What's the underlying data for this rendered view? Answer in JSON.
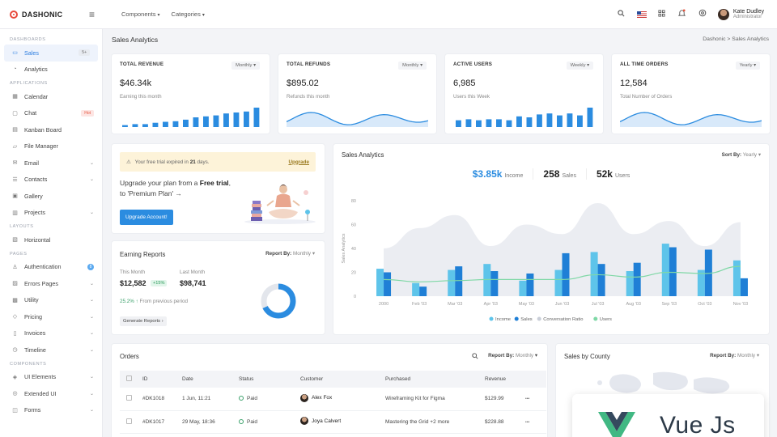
{
  "app": {
    "logo": "DASHONIC"
  },
  "topbar": {
    "nav": [
      "Components",
      "Categories"
    ],
    "user_name": "Kate Dudley",
    "user_role": "Administrator"
  },
  "sidebar": {
    "sections": [
      {
        "title": "DASHBOARDS",
        "items": [
          {
            "label": "Sales",
            "icon": "monitor-icon",
            "badge": "5+",
            "active": true
          },
          {
            "label": "Analytics",
            "icon": "analytics-icon"
          }
        ]
      },
      {
        "title": "APPLICATIONS",
        "items": [
          {
            "label": "Calendar",
            "icon": "calendar-icon"
          },
          {
            "label": "Chat",
            "icon": "chat-icon",
            "badge": "Hot"
          },
          {
            "label": "Kanban Board",
            "icon": "kanban-icon"
          },
          {
            "label": "File Manager",
            "icon": "folder-icon"
          },
          {
            "label": "Email",
            "icon": "mail-icon",
            "chevron": true
          },
          {
            "label": "Contacts",
            "icon": "contacts-icon",
            "chevron": true
          },
          {
            "label": "Gallery",
            "icon": "gallery-icon"
          },
          {
            "label": "Projects",
            "icon": "projects-icon",
            "chevron": true
          }
        ]
      },
      {
        "title": "LAYOUTS",
        "items": [
          {
            "label": "Horizontal",
            "icon": "layout-icon"
          }
        ]
      },
      {
        "title": "PAGES",
        "items": [
          {
            "label": "Authentication",
            "icon": "user-icon",
            "badge": "8"
          },
          {
            "label": "Errors Pages",
            "icon": "error-icon",
            "chevron": true
          },
          {
            "label": "Utility",
            "icon": "utility-icon",
            "chevron": true
          },
          {
            "label": "Pricing",
            "icon": "tag-icon",
            "chevron": true
          },
          {
            "label": "Invoices",
            "icon": "invoice-icon",
            "chevron": true
          },
          {
            "label": "Timeline",
            "icon": "timeline-icon",
            "chevron": true
          }
        ]
      },
      {
        "title": "COMPONENTS",
        "items": [
          {
            "label": "UI Elements",
            "icon": "elements-icon",
            "chevron": true
          },
          {
            "label": "Extended UI",
            "icon": "extended-icon",
            "chevron": true
          },
          {
            "label": "Forms",
            "icon": "forms-icon",
            "chevron": true
          }
        ]
      }
    ]
  },
  "page": {
    "title": "Sales Analytics",
    "breadcrumb": [
      "Dashonic",
      "Sales Analytics"
    ]
  },
  "kpis": [
    {
      "title": "TOTAL REVENUE",
      "filter": "Monthly",
      "value": "$46.34k",
      "sub": "Earning this month",
      "chart": "bars",
      "bars": [
        0.1,
        0.15,
        0.15,
        0.22,
        0.27,
        0.3,
        0.38,
        0.5,
        0.55,
        0.6,
        0.7,
        0.75,
        0.8,
        1.0
      ]
    },
    {
      "title": "TOTAL REFUNDS",
      "filter": "Monthly",
      "value": "$895.02",
      "sub": "Refunds this month",
      "chart": "wave"
    },
    {
      "title": "ACTIVE USERS",
      "filter": "Weekly",
      "value": "6,985",
      "sub": "Users this Week",
      "chart": "bars",
      "bars": [
        0.35,
        0.4,
        0.35,
        0.4,
        0.4,
        0.35,
        0.55,
        0.5,
        0.65,
        0.7,
        0.6,
        0.7,
        0.6,
        1.0
      ]
    },
    {
      "title": "ALL TIME ORDERS",
      "filter": "Yearly",
      "value": "12,584",
      "sub": "Total Number of Orders",
      "chart": "wave"
    }
  ],
  "upgrade": {
    "alert_prefix": "Your free trial expired in",
    "alert_days": "21",
    "alert_suffix": "days.",
    "alert_link": "Upgrade",
    "text_a": "Upgrade your plan from a ",
    "text_b": "Free trial",
    "text_c": ", to 'Premium Plan' →",
    "button": "Upgrade Account!"
  },
  "earning": {
    "title": "Earning Reports",
    "report_by_label": "Report By:",
    "report_by_value": "Monthly",
    "this_month_label": "This Month",
    "this_month_value": "$12,582",
    "this_month_change": "+15%",
    "last_month_label": "Last Month",
    "last_month_value": "$98,741",
    "growth": "25.2%",
    "growth_text": "From previous period",
    "button": "Generate Reports",
    "donut_fraction": 0.68
  },
  "sales_analytics": {
    "title": "Sales Analytics",
    "sort_label": "Sort By:",
    "sort_value": "Yearly",
    "stats": [
      {
        "value": "$3.85k",
        "label": "Income",
        "blue": true
      },
      {
        "value": "258",
        "label": "Sales"
      },
      {
        "value": "52k",
        "label": "Users"
      }
    ]
  },
  "chart_data": {
    "type": "bar",
    "ylabel": "Sales Analytics",
    "ylim": [
      0,
      80
    ],
    "yticks": [
      0,
      20,
      40,
      60,
      80
    ],
    "categories": [
      "2000",
      "Feb '03",
      "Mar '03",
      "Apr '03",
      "May '03",
      "Jun '03",
      "Jul '03",
      "Aug '03",
      "Sep '03",
      "Oct '03",
      "Nov '03"
    ],
    "series": [
      {
        "name": "Income",
        "type": "bar",
        "color": "#5ec4ea",
        "values": [
          23,
          11,
          22,
          27,
          13,
          22,
          37,
          21,
          44,
          22,
          30
        ]
      },
      {
        "name": "Sales",
        "type": "bar",
        "color": "#1f7fd6",
        "values": [
          20,
          8,
          25,
          21,
          19,
          36,
          27,
          28,
          41,
          39,
          15
        ]
      },
      {
        "name": "Conversation Ratio",
        "type": "area",
        "color": "#e3e6ec",
        "values": [
          40,
          57,
          68,
          42,
          60,
          52,
          78,
          52,
          63,
          42,
          62
        ]
      },
      {
        "name": "Users",
        "type": "line",
        "color": "#7fd8a6",
        "values": [
          14,
          12,
          13,
          14,
          14,
          14,
          18,
          16,
          20,
          19,
          25
        ]
      }
    ],
    "legend": "bottom"
  },
  "orders": {
    "title": "Orders",
    "report_by_label": "Report By:",
    "report_by_value": "Monthly",
    "columns": [
      "ID",
      "Date",
      "Status",
      "Customer",
      "Purchased",
      "Revenue"
    ],
    "rows": [
      {
        "id": "#DK1018",
        "date": "1 Jun, 11:21",
        "status": "Paid",
        "customer": "Alex Fox",
        "purchased": "Wireframing Kit for Figma",
        "revenue": "$129.99"
      },
      {
        "id": "#DK1017",
        "date": "29 May, 18:36",
        "status": "Paid",
        "customer": "Joya Calvert",
        "purchased": "Mastering the Grid +2 more",
        "revenue": "$228.88"
      }
    ]
  },
  "county": {
    "title": "Sales by County",
    "report_by_label": "Report By:",
    "report_by_value": "Monthly"
  },
  "overlay": {
    "brand": "Vue Js"
  },
  "colors": {
    "primary": "#2b8ce0",
    "vue_green": "#41b883",
    "vue_dark": "#35495e"
  }
}
